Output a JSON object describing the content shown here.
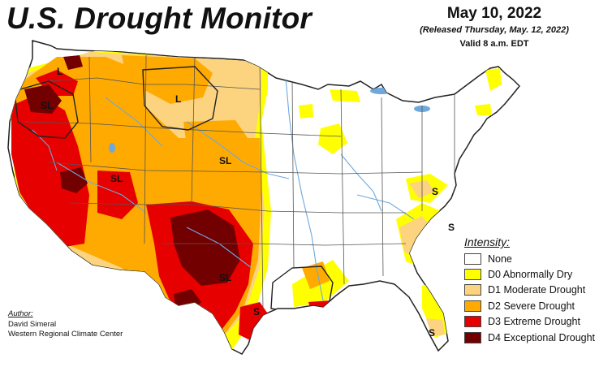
{
  "header": {
    "title": "U.S. Drought Monitor",
    "date": "May 10, 2022",
    "released": "(Released Thursday, May. 12, 2022)",
    "valid": "Valid 8 a.m. EDT"
  },
  "legend": {
    "title": "Intensity:",
    "items": [
      {
        "label": "None",
        "color": "#ffffff"
      },
      {
        "label": "D0 Abnormally Dry",
        "color": "#ffff00"
      },
      {
        "label": "D1 Moderate Drought",
        "color": "#fcd37f"
      },
      {
        "label": "D2 Severe Drought",
        "color": "#ffaa00"
      },
      {
        "label": "D3 Extreme Drought",
        "color": "#e60000"
      },
      {
        "label": "D4 Exceptional Drought",
        "color": "#730000"
      }
    ]
  },
  "author": {
    "heading": "Author:",
    "name": "David Simeral",
    "org": "Western Regional Climate Center"
  },
  "map": {
    "impact_labels": [
      "L",
      "SL",
      "L",
      "SL",
      "SL",
      "SL",
      "S",
      "S",
      "S",
      "S"
    ],
    "colors": {
      "none": "#ffffff",
      "d0": "#ffff00",
      "d1": "#fcd37f",
      "d2": "#ffaa00",
      "d3": "#e60000",
      "d4": "#730000",
      "water": "#6fa8dc",
      "border": "#555555",
      "outline": "#222222"
    }
  }
}
